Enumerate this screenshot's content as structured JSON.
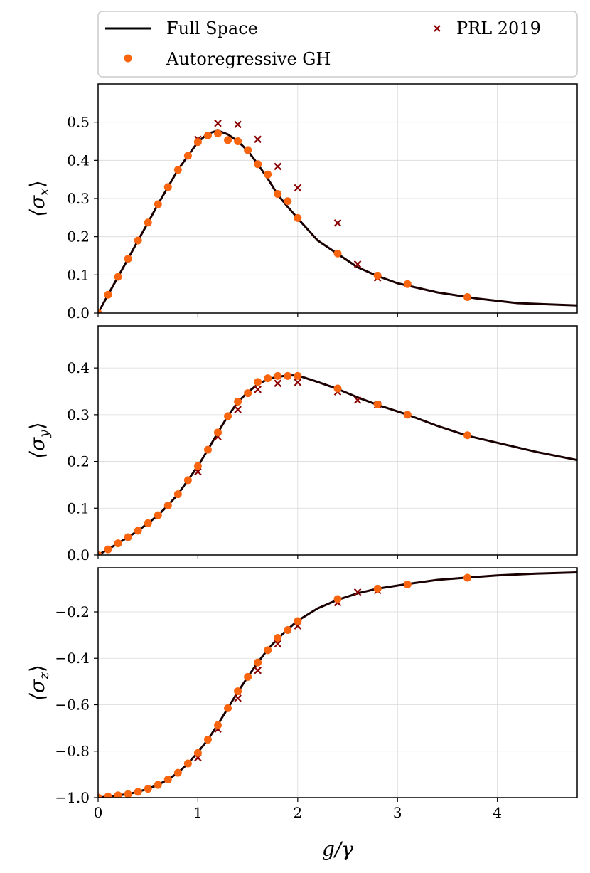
{
  "legend": {
    "entries": [
      {
        "label": "Full Space",
        "kind": "line",
        "color": "#000000"
      },
      {
        "label": "Autoregressive GH",
        "kind": "dot",
        "color": "#f9650f"
      },
      {
        "label": "PRL 2019",
        "kind": "cross",
        "color": "#8b0000"
      }
    ]
  },
  "colors": {
    "line": "#1a0000",
    "dot": "#f9650f",
    "cross": "#8b0000",
    "grid": "#d9d9d9"
  },
  "xaxis": {
    "label": "g/γ",
    "lim": [
      0,
      4.8
    ],
    "ticks": [
      0,
      1,
      2,
      3,
      4
    ],
    "tick_labels": [
      "0",
      "1",
      "2",
      "3",
      "4"
    ]
  },
  "chart_data": [
    {
      "type": "line",
      "ylabel": "⟨σx⟩",
      "ylabel_main": "⟨σ",
      "ylabel_sub": "x",
      "ylabel_close": "⟩",
      "xlim": [
        0,
        4.8
      ],
      "ylim": [
        0,
        0.6
      ],
      "yticks": [
        0.0,
        0.1,
        0.2,
        0.3,
        0.4,
        0.5
      ],
      "ytick_labels": [
        "0.0",
        "0.1",
        "0.2",
        "0.3",
        "0.4",
        "0.5"
      ],
      "grid": true,
      "series": [
        {
          "name": "Full Space",
          "kind": "line",
          "x": [
            0,
            0.1,
            0.2,
            0.3,
            0.4,
            0.5,
            0.6,
            0.7,
            0.8,
            0.9,
            1.0,
            1.1,
            1.2,
            1.3,
            1.4,
            1.5,
            1.6,
            1.7,
            1.8,
            1.9,
            2.0,
            2.2,
            2.4,
            2.6,
            2.8,
            3.0,
            3.4,
            3.8,
            4.2,
            4.8
          ],
          "y": [
            0,
            0.048,
            0.095,
            0.142,
            0.19,
            0.237,
            0.285,
            0.33,
            0.375,
            0.412,
            0.448,
            0.47,
            0.478,
            0.468,
            0.45,
            0.425,
            0.39,
            0.352,
            0.31,
            0.278,
            0.248,
            0.19,
            0.155,
            0.12,
            0.097,
            0.078,
            0.054,
            0.038,
            0.026,
            0.02
          ]
        },
        {
          "name": "Autoregressive GH",
          "kind": "dot",
          "x": [
            0,
            0.1,
            0.2,
            0.3,
            0.4,
            0.5,
            0.6,
            0.7,
            0.8,
            0.9,
            1.0,
            1.1,
            1.2,
            1.3,
            1.4,
            1.5,
            1.6,
            1.7,
            1.8,
            1.9,
            2.0,
            2.4,
            2.8,
            3.1,
            3.7
          ],
          "y": [
            0,
            0.048,
            0.095,
            0.142,
            0.19,
            0.237,
            0.285,
            0.33,
            0.375,
            0.412,
            0.448,
            0.465,
            0.47,
            0.453,
            0.45,
            0.427,
            0.39,
            0.363,
            0.312,
            0.293,
            0.249,
            0.156,
            0.098,
            0.076,
            0.042
          ]
        },
        {
          "name": "PRL 2019",
          "kind": "cross",
          "x": [
            1.0,
            1.2,
            1.4,
            1.6,
            1.8,
            2.0,
            2.4,
            2.6,
            2.8
          ],
          "y": [
            0.455,
            0.497,
            0.494,
            0.455,
            0.384,
            0.328,
            0.236,
            0.128,
            0.092
          ]
        }
      ]
    },
    {
      "type": "line",
      "ylabel": "⟨σy⟩",
      "ylabel_main": "⟨σ",
      "ylabel_sub": "y",
      "ylabel_close": "⟩",
      "xlim": [
        0,
        4.8
      ],
      "ylim": [
        0,
        0.49
      ],
      "yticks": [
        0.0,
        0.1,
        0.2,
        0.3,
        0.4
      ],
      "ytick_labels": [
        "0.0",
        "0.1",
        "0.2",
        "0.3",
        "0.4"
      ],
      "grid": true,
      "series": [
        {
          "name": "Full Space",
          "kind": "line",
          "x": [
            0,
            0.1,
            0.2,
            0.3,
            0.4,
            0.5,
            0.6,
            0.7,
            0.8,
            0.9,
            1.0,
            1.1,
            1.2,
            1.3,
            1.4,
            1.5,
            1.6,
            1.7,
            1.8,
            1.9,
            2.0,
            2.2,
            2.4,
            2.6,
            2.8,
            3.1,
            3.4,
            3.7,
            4.0,
            4.4,
            4.8
          ],
          "y": [
            0,
            0.012,
            0.025,
            0.038,
            0.052,
            0.068,
            0.085,
            0.106,
            0.13,
            0.16,
            0.19,
            0.225,
            0.262,
            0.297,
            0.327,
            0.348,
            0.365,
            0.376,
            0.381,
            0.384,
            0.384,
            0.37,
            0.355,
            0.337,
            0.321,
            0.3,
            0.276,
            0.255,
            0.24,
            0.22,
            0.203
          ]
        },
        {
          "name": "Autoregressive GH",
          "kind": "dot",
          "x": [
            0,
            0.1,
            0.2,
            0.3,
            0.4,
            0.5,
            0.6,
            0.7,
            0.8,
            0.9,
            1.0,
            1.1,
            1.2,
            1.3,
            1.4,
            1.5,
            1.6,
            1.7,
            1.8,
            1.9,
            2.0,
            2.4,
            2.8,
            3.1,
            3.7
          ],
          "y": [
            0,
            0.012,
            0.025,
            0.038,
            0.052,
            0.068,
            0.085,
            0.106,
            0.13,
            0.16,
            0.19,
            0.225,
            0.262,
            0.297,
            0.328,
            0.346,
            0.37,
            0.378,
            0.383,
            0.383,
            0.383,
            0.356,
            0.322,
            0.3,
            0.256
          ]
        },
        {
          "name": "PRL 2019",
          "kind": "cross",
          "x": [
            1.0,
            1.2,
            1.4,
            1.6,
            1.8,
            2.0,
            2.4,
            2.6,
            2.8
          ],
          "y": [
            0.178,
            0.253,
            0.311,
            0.354,
            0.367,
            0.369,
            0.349,
            0.331,
            0.321
          ]
        }
      ]
    },
    {
      "type": "line",
      "ylabel": "⟨σz⟩",
      "ylabel_main": "⟨σ",
      "ylabel_sub": "z",
      "ylabel_close": "⟩",
      "xlim": [
        0,
        4.8
      ],
      "ylim": [
        -1.0,
        -0.01
      ],
      "yticks": [
        -1.0,
        -0.8,
        -0.6,
        -0.4,
        -0.2
      ],
      "ytick_labels": [
        "−1.0",
        "−0.8",
        "−0.6",
        "−0.4",
        "−0.2"
      ],
      "grid": true,
      "series": [
        {
          "name": "Full Space",
          "kind": "line",
          "x": [
            0,
            0.1,
            0.2,
            0.3,
            0.4,
            0.5,
            0.6,
            0.7,
            0.8,
            0.9,
            1.0,
            1.1,
            1.2,
            1.3,
            1.4,
            1.5,
            1.6,
            1.7,
            1.8,
            1.9,
            2.0,
            2.2,
            2.4,
            2.6,
            2.8,
            3.1,
            3.4,
            3.7,
            4.0,
            4.4,
            4.8
          ],
          "y": [
            -1.0,
            -0.995,
            -0.99,
            -0.985,
            -0.975,
            -0.962,
            -0.945,
            -0.922,
            -0.893,
            -0.853,
            -0.805,
            -0.75,
            -0.685,
            -0.615,
            -0.545,
            -0.48,
            -0.418,
            -0.362,
            -0.315,
            -0.275,
            -0.238,
            -0.185,
            -0.148,
            -0.12,
            -0.1,
            -0.08,
            -0.062,
            -0.052,
            -0.043,
            -0.035,
            -0.03
          ]
        },
        {
          "name": "Autoregressive GH",
          "kind": "dot",
          "x": [
            0,
            0.1,
            0.2,
            0.3,
            0.4,
            0.5,
            0.6,
            0.7,
            0.8,
            0.9,
            1.0,
            1.1,
            1.2,
            1.3,
            1.4,
            1.5,
            1.6,
            1.7,
            1.8,
            1.9,
            2.0,
            2.4,
            2.8,
            3.1,
            3.7
          ],
          "y": [
            -1.0,
            -0.995,
            -0.99,
            -0.985,
            -0.975,
            -0.962,
            -0.945,
            -0.922,
            -0.893,
            -0.853,
            -0.808,
            -0.75,
            -0.688,
            -0.615,
            -0.542,
            -0.48,
            -0.418,
            -0.365,
            -0.312,
            -0.278,
            -0.24,
            -0.145,
            -0.1,
            -0.082,
            -0.053
          ]
        },
        {
          "name": "PRL 2019",
          "kind": "cross",
          "x": [
            1.0,
            1.2,
            1.4,
            1.6,
            1.8,
            2.0,
            2.4,
            2.6,
            2.8
          ],
          "y": [
            -0.828,
            -0.705,
            -0.572,
            -0.452,
            -0.338,
            -0.26,
            -0.16,
            -0.115,
            -0.108
          ]
        }
      ]
    }
  ]
}
